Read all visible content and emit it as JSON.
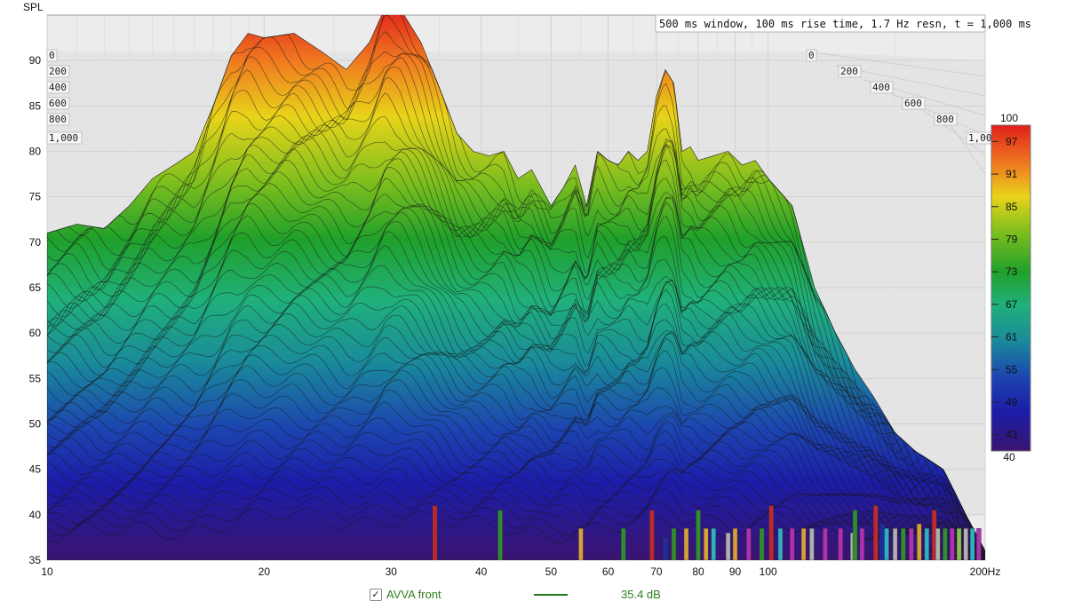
{
  "chart_data": {
    "type": "waterfall",
    "ylabel": "SPL",
    "y_ticks": [
      90,
      85,
      80,
      75,
      70,
      65,
      60,
      55,
      50,
      45,
      40,
      35
    ],
    "ylim": [
      35,
      95
    ],
    "x_ticks": [
      {
        "label": "10",
        "value": 10
      },
      {
        "label": "20",
        "value": 20
      },
      {
        "label": "30",
        "value": 30
      },
      {
        "label": "40",
        "value": 40
      },
      {
        "label": "50",
        "value": 50
      },
      {
        "label": "60",
        "value": 60
      },
      {
        "label": "70",
        "value": 70
      },
      {
        "label": "80",
        "value": 80
      },
      {
        "label": "90",
        "value": 90
      },
      {
        "label": "100",
        "value": 100
      },
      {
        "label": "200Hz",
        "value": 200
      }
    ],
    "xlim": [
      10,
      200
    ],
    "x_scale": "log",
    "time_ticks": [
      "0",
      "200",
      "400",
      "600",
      "800",
      "1,000"
    ],
    "info": "500 ms window, 100 ms rise time,  1.7 Hz resn, t = 1,000 ms",
    "colorbar": {
      "min_label": "40",
      "max_label": "100",
      "ticks": [
        "97",
        "91",
        "85",
        "79",
        "73",
        "67",
        "61",
        "55",
        "49",
        "43"
      ],
      "tick_values": [
        97,
        91,
        85,
        79,
        73,
        67,
        61,
        55,
        49,
        43
      ],
      "min": 40,
      "max": 100
    },
    "peak_envelope": [
      [
        10,
        71
      ],
      [
        11,
        72
      ],
      [
        12,
        71.5
      ],
      [
        13,
        74
      ],
      [
        14,
        77
      ],
      [
        15,
        78.5
      ],
      [
        16,
        80
      ],
      [
        17,
        85
      ],
      [
        18,
        90.5
      ],
      [
        19,
        93
      ],
      [
        20,
        92.5
      ],
      [
        22,
        93
      ],
      [
        24,
        91
      ],
      [
        26,
        89
      ],
      [
        28,
        92
      ],
      [
        29.5,
        96
      ],
      [
        31,
        95.5
      ],
      [
        33,
        92
      ],
      [
        35,
        87
      ],
      [
        37,
        82
      ],
      [
        39,
        80
      ],
      [
        41,
        79.5
      ],
      [
        43,
        80
      ],
      [
        45,
        77
      ],
      [
        47,
        78
      ],
      [
        50,
        74
      ],
      [
        52,
        76
      ],
      [
        54,
        78.5
      ],
      [
        56,
        74
      ],
      [
        58,
        80
      ],
      [
        60,
        79
      ],
      [
        62,
        78.5
      ],
      [
        64,
        80
      ],
      [
        66,
        79
      ],
      [
        68,
        80
      ],
      [
        70,
        86
      ],
      [
        72,
        89
      ],
      [
        74,
        87.5
      ],
      [
        76,
        80
      ],
      [
        78,
        80.5
      ],
      [
        80,
        79
      ],
      [
        84,
        79.5
      ],
      [
        88,
        80
      ],
      [
        92,
        78.5
      ],
      [
        96,
        79
      ],
      [
        100,
        77
      ],
      [
        108,
        74
      ],
      [
        116,
        65
      ],
      [
        124,
        60
      ],
      [
        132,
        56
      ],
      [
        140,
        53
      ],
      [
        150,
        49
      ],
      [
        160,
        47
      ],
      [
        175,
        45
      ],
      [
        188,
        40
      ],
      [
        200,
        36
      ]
    ],
    "bars": [
      {
        "freq": 34.5,
        "height": 41,
        "color": "#c0282d"
      },
      {
        "freq": 42.5,
        "height": 40.5,
        "color": "#2f8f2f"
      },
      {
        "freq": 55,
        "height": 38.5,
        "color": "#d6a13a"
      },
      {
        "freq": 63,
        "height": 38.5,
        "color": "#2f8f2f"
      },
      {
        "freq": 69,
        "height": 40.5,
        "color": "#c0282d"
      },
      {
        "freq": 72,
        "height": 37.5,
        "color": "#1c2fa0"
      },
      {
        "freq": 74,
        "height": 38.5,
        "color": "#2f8f2f"
      },
      {
        "freq": 77,
        "height": 38.5,
        "color": "#d6a13a"
      },
      {
        "freq": 80,
        "height": 40.5,
        "color": "#2f8f2f"
      },
      {
        "freq": 82,
        "height": 38.5,
        "color": "#d6a13a"
      },
      {
        "freq": 84,
        "height": 38.5,
        "color": "#2fb0c0"
      },
      {
        "freq": 88,
        "height": 38,
        "color": "#b0b0b0"
      },
      {
        "freq": 90,
        "height": 38.5,
        "color": "#d6a13a"
      },
      {
        "freq": 94,
        "height": 38.5,
        "color": "#b030b0"
      },
      {
        "freq": 98,
        "height": 38.5,
        "color": "#2f8f2f"
      },
      {
        "freq": 101,
        "height": 41,
        "color": "#c0282d"
      },
      {
        "freq": 104,
        "height": 38.5,
        "color": "#2fb0c0"
      },
      {
        "freq": 108,
        "height": 38.5,
        "color": "#b030b0"
      },
      {
        "freq": 112,
        "height": 38.5,
        "color": "#d6a13a"
      },
      {
        "freq": 115,
        "height": 38.5,
        "color": "#b0b0b0"
      },
      {
        "freq": 120,
        "height": 38.5,
        "color": "#b030b0"
      },
      {
        "freq": 126,
        "height": 38.5,
        "color": "#b030b0"
      },
      {
        "freq": 131,
        "height": 38,
        "color": "#b0b0b0"
      },
      {
        "freq": 132,
        "height": 40.5,
        "color": "#2f8f2f"
      },
      {
        "freq": 135,
        "height": 38.5,
        "color": "#b030b0"
      },
      {
        "freq": 141,
        "height": 41,
        "color": "#c0282d"
      },
      {
        "freq": 144,
        "height": 39,
        "color": "#1c2fa0"
      },
      {
        "freq": 146,
        "height": 38.5,
        "color": "#2fb0c0"
      },
      {
        "freq": 150,
        "height": 38.5,
        "color": "#b0b0b0"
      },
      {
        "freq": 154,
        "height": 38.5,
        "color": "#2f8f2f"
      },
      {
        "freq": 158,
        "height": 38.5,
        "color": "#b030b0"
      },
      {
        "freq": 162,
        "height": 39,
        "color": "#d6a13a"
      },
      {
        "freq": 166,
        "height": 38.5,
        "color": "#2fb0c0"
      },
      {
        "freq": 170,
        "height": 40.5,
        "color": "#c0282d"
      },
      {
        "freq": 172,
        "height": 38.5,
        "color": "#b0b0b0"
      },
      {
        "freq": 176,
        "height": 38.5,
        "color": "#2f8f2f"
      },
      {
        "freq": 180,
        "height": 38.5,
        "color": "#b030b0"
      },
      {
        "freq": 184,
        "height": 38.5,
        "color": "#8bc34a"
      },
      {
        "freq": 188,
        "height": 38.5,
        "color": "#b0b0b0"
      },
      {
        "freq": 192,
        "height": 38.5,
        "color": "#2fb0c0"
      },
      {
        "freq": 196,
        "height": 38.5,
        "color": "#b030b0"
      }
    ],
    "grid": true,
    "legend": [
      {
        "name": "AVVA front",
        "checked": true,
        "value": "35.4 dB",
        "color": "#1f7a1f"
      }
    ]
  },
  "legend": {
    "check": "✓",
    "name": "AVVA front",
    "value": "35.4 dB"
  }
}
